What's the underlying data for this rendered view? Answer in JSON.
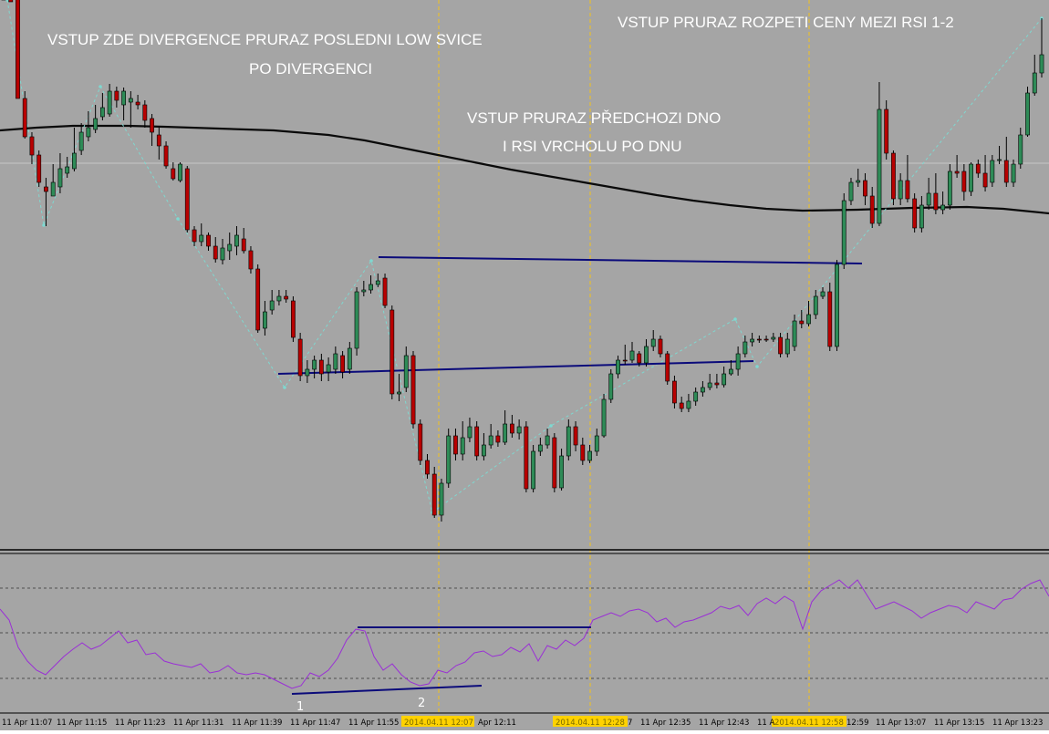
{
  "chart_data": {
    "type": "candlestick",
    "colors": {
      "background": "#a5a5a5",
      "bull_body": "#2e8b57",
      "bear_body": "#b80000",
      "wick": "#000000",
      "moving_average": "#0a0a0a",
      "level_lines": "#0b0b7a",
      "zigzag": "#7fd8d0",
      "rsi": "#9a2fd6",
      "vertical_markers": "#f2c21b",
      "highlight_box": "#ffd200",
      "annotation_text": "#ffffff"
    },
    "annotations": [
      "VSTUP ZDE DIVERGENCE PRURAZ POSLEDNI LOW SVICE",
      "PO DIVERGENCI",
      "VSTUP PRURAZ PŘEDCHOZI DNO",
      "I RSI VRCHOLU PO DNU",
      "VSTUP PRURAZ ROZPETI CENY MEZI RSI  1-2"
    ],
    "point_labels": [
      "1",
      "2"
    ],
    "x_ticks": [
      "11 Apr 11:07",
      "11 Apr 11:15",
      "11 Apr 11:23",
      "11 Apr 11:31",
      "11 Apr 11:39",
      "11 Apr 11:47",
      "11 Apr 11:55",
      "2014.04.11 12:07",
      "Apr 12:11",
      "2014.04.11 12:28",
      "7",
      "11 Apr 12:35",
      "11 Apr 12:43",
      "11 A",
      "2014.04.11 12:58",
      "12:59",
      "11 Apr 13:07",
      "11 Apr 13:15",
      "11 Apr 13:23"
    ],
    "highlighted_ticks": [
      "2014.04.11 12:07",
      "2014.04.11 12:28",
      "2014.04.11 12:58"
    ],
    "candles": [
      [
        0,
        -2,
        -30,
        -2
      ],
      [
        -2,
        2,
        -8,
        -2
      ],
      [
        -2,
        108,
        -8,
        108
      ],
      [
        108,
        150,
        100,
        152
      ],
      [
        150,
        170,
        145,
        180
      ],
      [
        170,
        200,
        165,
        205
      ],
      [
        205,
        210,
        195,
        248
      ],
      [
        215,
        200,
        180,
        215
      ],
      [
        205,
        185,
        168,
        212
      ],
      [
        190,
        183,
        172,
        195
      ],
      [
        185,
        168,
        140,
        188
      ],
      [
        165,
        145,
        135,
        170
      ],
      [
        150,
        140,
        122,
        155
      ],
      [
        142,
        130,
        115,
        146
      ],
      [
        128,
        118,
        102,
        132
      ],
      [
        125,
        100,
        92,
        128
      ],
      [
        100,
        110,
        95,
        118
      ],
      [
        115,
        100,
        96,
        132
      ],
      [
        112,
        108,
        100,
        140
      ],
      [
        112,
        115,
        104,
        120
      ],
      [
        115,
        132,
        110,
        140
      ],
      [
        130,
        145,
        125,
        160
      ],
      [
        148,
        160,
        140,
        175
      ],
      [
        160,
        182,
        155,
        185
      ],
      [
        185,
        196,
        178,
        198
      ],
      [
        198,
        180,
        178,
        200
      ],
      [
        185,
        252,
        182,
        255
      ],
      [
        252,
        265,
        248,
        270
      ],
      [
        265,
        258,
        245,
        270
      ],
      [
        258,
        270,
        255,
        275
      ],
      [
        270,
        284,
        260,
        288
      ],
      [
        285,
        272,
        262,
        290
      ],
      [
        275,
        268,
        255,
        285
      ],
      [
        270,
        258,
        248,
        280
      ],
      [
        262,
        275,
        250,
        278
      ],
      [
        275,
        295,
        270,
        300
      ],
      [
        295,
        362,
        290,
        365
      ],
      [
        360,
        342,
        330,
        368
      ],
      [
        340,
        330,
        318,
        345
      ],
      [
        330,
        325,
        318,
        335
      ],
      [
        325,
        328,
        318,
        332
      ],
      [
        330,
        370,
        325,
        375
      ],
      [
        372,
        412,
        365,
        418
      ],
      [
        412,
        405,
        395,
        420
      ],
      [
        405,
        395,
        390,
        415
      ],
      [
        395,
        410,
        388,
        418
      ],
      [
        408,
        400,
        392,
        418
      ],
      [
        405,
        388,
        380,
        410
      ],
      [
        390,
        408,
        385,
        415
      ],
      [
        405,
        382,
        375,
        410
      ],
      [
        382,
        320,
        315,
        390
      ],
      [
        320,
        318,
        308,
        325
      ],
      [
        318,
        312,
        302,
        322
      ],
      [
        312,
        308,
        300,
        315
      ],
      [
        305,
        335,
        300,
        338
      ],
      [
        340,
        432,
        335,
        438
      ],
      [
        432,
        430,
        410,
        440
      ],
      [
        425,
        390,
        380,
        430
      ],
      [
        390,
        465,
        385,
        470
      ],
      [
        465,
        505,
        460,
        510
      ],
      [
        505,
        520,
        498,
        525
      ],
      [
        520,
        565,
        512,
        568
      ],
      [
        565,
        530,
        525,
        572
      ],
      [
        530,
        478,
        470,
        535
      ],
      [
        478,
        498,
        470,
        505
      ],
      [
        498,
        480,
        462,
        505
      ],
      [
        480,
        468,
        458,
        485
      ],
      [
        468,
        500,
        462,
        505
      ],
      [
        500,
        488,
        475,
        505
      ],
      [
        488,
        478,
        465,
        492
      ],
      [
        478,
        485,
        472,
        490
      ],
      [
        485,
        465,
        450,
        488
      ],
      [
        465,
        475,
        455,
        480
      ],
      [
        475,
        468,
        460,
        482
      ],
      [
        468,
        536,
        462,
        540
      ],
      [
        536,
        495,
        488,
        540
      ],
      [
        495,
        488,
        480,
        500
      ],
      [
        488,
        478,
        470,
        492
      ],
      [
        480,
        535,
        475,
        540
      ],
      [
        535,
        500,
        492,
        538
      ],
      [
        500,
        468,
        460,
        505
      ],
      [
        468,
        488,
        462,
        495
      ],
      [
        488,
        505,
        480,
        510
      ],
      [
        505,
        495,
        488,
        508
      ],
      [
        495,
        478,
        470,
        500
      ],
      [
        478,
        438,
        432,
        480
      ],
      [
        438,
        410,
        405,
        442
      ],
      [
        410,
        395,
        390,
        415
      ],
      [
        395,
        395,
        378,
        400
      ],
      [
        395,
        385,
        375,
        398
      ],
      [
        388,
        398,
        385,
        402
      ],
      [
        398,
        380,
        372,
        402
      ],
      [
        380,
        372,
        362,
        385
      ],
      [
        372,
        388,
        368,
        392
      ],
      [
        388,
        418,
        385,
        422
      ],
      [
        418,
        442,
        412,
        448
      ],
      [
        442,
        448,
        435,
        452
      ],
      [
        448,
        440,
        432,
        452
      ],
      [
        440,
        430,
        425,
        445
      ],
      [
        430,
        425,
        418,
        435
      ],
      [
        425,
        420,
        410,
        428
      ],
      [
        420,
        422,
        410,
        426
      ],
      [
        422,
        410,
        402,
        425
      ],
      [
        410,
        405,
        395,
        412
      ],
      [
        405,
        388,
        380,
        412
      ],
      [
        388,
        375,
        368,
        392
      ],
      [
        375,
        372,
        365,
        380
      ],
      [
        372,
        372,
        368,
        376
      ],
      [
        372,
        372,
        368,
        375
      ],
      [
        372,
        370,
        365,
        375
      ],
      [
        370,
        388,
        365,
        392
      ],
      [
        388,
        372,
        365,
        392
      ],
      [
        380,
        352,
        345,
        385
      ],
      [
        352,
        355,
        340,
        360
      ],
      [
        355,
        345,
        330,
        358
      ],
      [
        345,
        325,
        318,
        350
      ],
      [
        325,
        320,
        315,
        328
      ],
      [
        320,
        380,
        310,
        385
      ],
      [
        380,
        290,
        285,
        385
      ],
      [
        290,
        220,
        212,
        295
      ],
      [
        220,
        200,
        195,
        225
      ],
      [
        200,
        198,
        185,
        205
      ],
      [
        198,
        215,
        190,
        225
      ],
      [
        215,
        245,
        205,
        250
      ],
      [
        245,
        120,
        90,
        248
      ],
      [
        120,
        168,
        110,
        175
      ],
      [
        168,
        218,
        165,
        225
      ],
      [
        218,
        198,
        190,
        225
      ],
      [
        198,
        218,
        170,
        222
      ],
      [
        218,
        250,
        212,
        255
      ],
      [
        250,
        225,
        215,
        255
      ],
      [
        225,
        212,
        195,
        230
      ],
      [
        212,
        230,
        190,
        235
      ],
      [
        230,
        225,
        210,
        235
      ],
      [
        225,
        188,
        180,
        230
      ],
      [
        188,
        190,
        170,
        195
      ],
      [
        188,
        210,
        180,
        220
      ],
      [
        210,
        180,
        178,
        215
      ],
      [
        180,
        190,
        175,
        195
      ],
      [
        190,
        205,
        170,
        210
      ],
      [
        200,
        176,
        170,
        205
      ],
      [
        176,
        175,
        160,
        180
      ],
      [
        176,
        200,
        150,
        205
      ],
      [
        200,
        180,
        175,
        205
      ],
      [
        180,
        148,
        140,
        185
      ],
      [
        148,
        102,
        95,
        150
      ],
      [
        102,
        80,
        60,
        105
      ],
      [
        80,
        60,
        20,
        85
      ]
    ],
    "moving_average": [
      [
        0,
        143
      ],
      [
        40,
        140
      ],
      [
        80,
        138
      ],
      [
        140,
        138
      ],
      [
        180,
        139
      ],
      [
        240,
        141
      ],
      [
        300,
        143
      ],
      [
        360,
        148
      ],
      [
        400,
        154
      ],
      [
        440,
        162
      ],
      [
        480,
        170
      ],
      [
        520,
        178
      ],
      [
        560,
        186
      ],
      [
        600,
        193
      ],
      [
        640,
        200
      ],
      [
        680,
        207
      ],
      [
        720,
        214
      ],
      [
        760,
        220
      ],
      [
        800,
        225
      ],
      [
        840,
        229
      ],
      [
        880,
        231
      ],
      [
        940,
        230
      ],
      [
        1000,
        228
      ],
      [
        1060,
        227
      ],
      [
        1100,
        229
      ],
      [
        1150,
        234
      ]
    ],
    "zigzag_points": [
      [
        8,
        0
      ],
      [
        48,
        247
      ],
      [
        110,
        95
      ],
      [
        195,
        240
      ],
      [
        312,
        425
      ],
      [
        407,
        286
      ],
      [
        474,
        562
      ],
      [
        604,
        467
      ],
      [
        806,
        350
      ],
      [
        830,
        402
      ],
      [
        1142,
        20
      ]
    ],
    "level_lines": [
      [
        [
          415,
          282
        ],
        [
          945,
          289
        ]
      ],
      [
        [
          305,
          410
        ],
        [
          826,
          396
        ]
      ]
    ],
    "rsi_levels": [
      645,
      694,
      744
    ],
    "rsi_segments": [
      [
        [
          320,
          761
        ],
        [
          528,
          752
        ]
      ],
      [
        [
          392,
          688
        ],
        [
          648,
          688
        ]
      ]
    ],
    "rsi_series": [
      [
        0,
        668
      ],
      [
        10,
        680
      ],
      [
        20,
        710
      ],
      [
        30,
        725
      ],
      [
        40,
        735
      ],
      [
        50,
        740
      ],
      [
        60,
        730
      ],
      [
        70,
        720
      ],
      [
        80,
        712
      ],
      [
        90,
        705
      ],
      [
        100,
        712
      ],
      [
        110,
        708
      ],
      [
        120,
        700
      ],
      [
        130,
        692
      ],
      [
        140,
        705
      ],
      [
        150,
        702
      ],
      [
        160,
        718
      ],
      [
        170,
        716
      ],
      [
        180,
        725
      ],
      [
        190,
        728
      ],
      [
        200,
        730
      ],
      [
        210,
        732
      ],
      [
        220,
        728
      ],
      [
        230,
        738
      ],
      [
        240,
        736
      ],
      [
        250,
        730
      ],
      [
        260,
        738
      ],
      [
        270,
        740
      ],
      [
        280,
        738
      ],
      [
        290,
        740
      ],
      [
        300,
        745
      ],
      [
        310,
        750
      ],
      [
        320,
        755
      ],
      [
        330,
        752
      ],
      [
        340,
        738
      ],
      [
        350,
        742
      ],
      [
        360,
        735
      ],
      [
        370,
        722
      ],
      [
        380,
        702
      ],
      [
        390,
        690
      ],
      [
        400,
        692
      ],
      [
        410,
        720
      ],
      [
        420,
        735
      ],
      [
        430,
        728
      ],
      [
        440,
        740
      ],
      [
        450,
        748
      ],
      [
        460,
        752
      ],
      [
        470,
        750
      ],
      [
        480,
        735
      ],
      [
        490,
        738
      ],
      [
        500,
        730
      ],
      [
        510,
        726
      ],
      [
        520,
        716
      ],
      [
        530,
        714
      ],
      [
        540,
        720
      ],
      [
        550,
        718
      ],
      [
        560,
        710
      ],
      [
        570,
        715
      ],
      [
        580,
        706
      ],
      [
        590,
        725
      ],
      [
        600,
        708
      ],
      [
        610,
        712
      ],
      [
        620,
        702
      ],
      [
        630,
        708
      ],
      [
        640,
        700
      ],
      [
        650,
        680
      ],
      [
        660,
        676
      ],
      [
        670,
        672
      ],
      [
        680,
        676
      ],
      [
        690,
        670
      ],
      [
        700,
        668
      ],
      [
        710,
        672
      ],
      [
        720,
        682
      ],
      [
        730,
        678
      ],
      [
        740,
        688
      ],
      [
        750,
        682
      ],
      [
        760,
        680
      ],
      [
        770,
        676
      ],
      [
        780,
        672
      ],
      [
        790,
        665
      ],
      [
        800,
        668
      ],
      [
        810,
        664
      ],
      [
        820,
        675
      ],
      [
        830,
        662
      ],
      [
        840,
        656
      ],
      [
        850,
        662
      ],
      [
        860,
        654
      ],
      [
        870,
        660
      ],
      [
        880,
        690
      ],
      [
        890,
        660
      ],
      [
        900,
        648
      ],
      [
        910,
        642
      ],
      [
        920,
        636
      ],
      [
        930,
        645
      ],
      [
        940,
        636
      ],
      [
        950,
        652
      ],
      [
        960,
        668
      ],
      [
        970,
        664
      ],
      [
        980,
        660
      ],
      [
        990,
        665
      ],
      [
        1000,
        670
      ],
      [
        1010,
        678
      ],
      [
        1020,
        672
      ],
      [
        1030,
        668
      ],
      [
        1040,
        664
      ],
      [
        1050,
        666
      ],
      [
        1060,
        672
      ],
      [
        1070,
        660
      ],
      [
        1080,
        664
      ],
      [
        1090,
        668
      ],
      [
        1100,
        658
      ],
      [
        1110,
        656
      ],
      [
        1120,
        646
      ],
      [
        1130,
        640
      ],
      [
        1140,
        636
      ],
      [
        1150,
        654
      ]
    ],
    "vertical_markers": [
      481,
      647,
      887
    ]
  }
}
